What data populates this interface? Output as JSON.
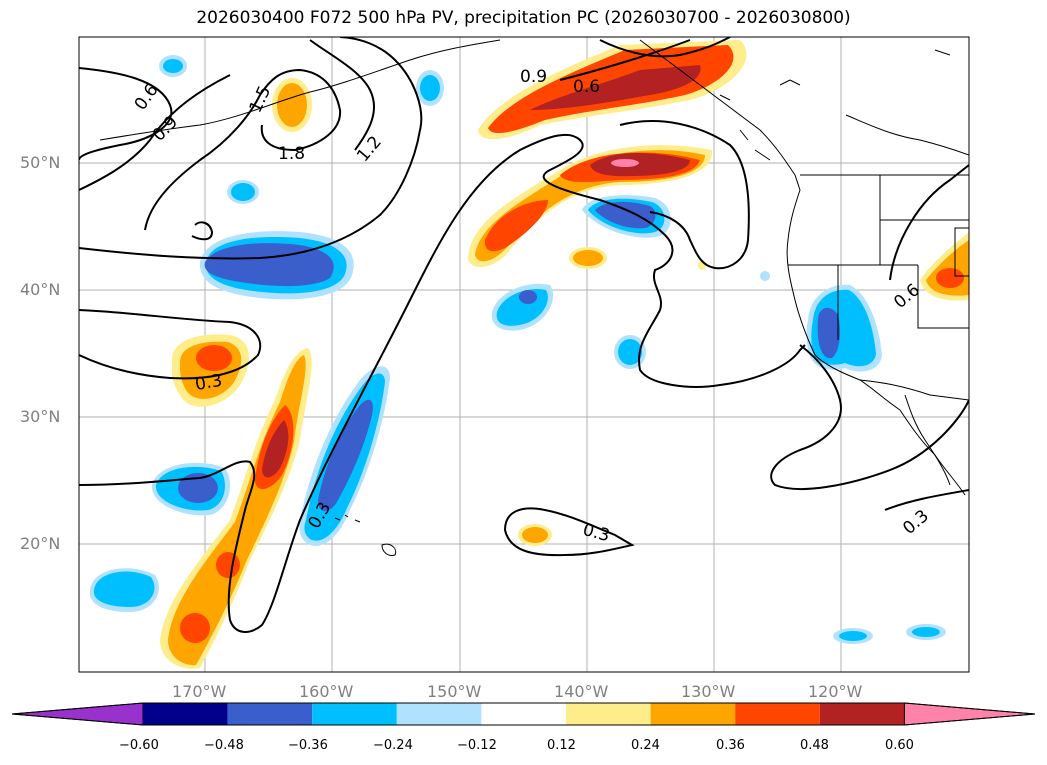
{
  "title": "2026030400 F072 500 hPa PV, precipitation PC (2026030700 - 2026030800)",
  "axes": {
    "lat_labels": [
      "50°N",
      "40°N",
      "30°N",
      "20°N"
    ],
    "lon_labels": [
      "170°W",
      "160°W",
      "150°W",
      "140°W",
      "130°W",
      "120°W"
    ]
  },
  "contour_labels": [
    "0.6",
    "0.9",
    "1.5",
    "1.8",
    "1.2",
    "0.9",
    "0.6",
    "0.3",
    "0.3",
    "0.3",
    "0.6",
    "0.3"
  ],
  "colorbar": {
    "colors": [
      "#9932cc",
      "#00008b",
      "#3a5fcd",
      "#00bfff",
      "#b0e2ff",
      "#ffffff",
      "#ffec8b",
      "#ffa500",
      "#ff4500",
      "#b22222",
      "#ff82ab"
    ],
    "tick_labels": [
      "−0.60",
      "−0.48",
      "−0.36",
      "−0.24",
      "−0.12",
      "0.12",
      "0.24",
      "0.36",
      "0.48",
      "0.60"
    ]
  }
}
